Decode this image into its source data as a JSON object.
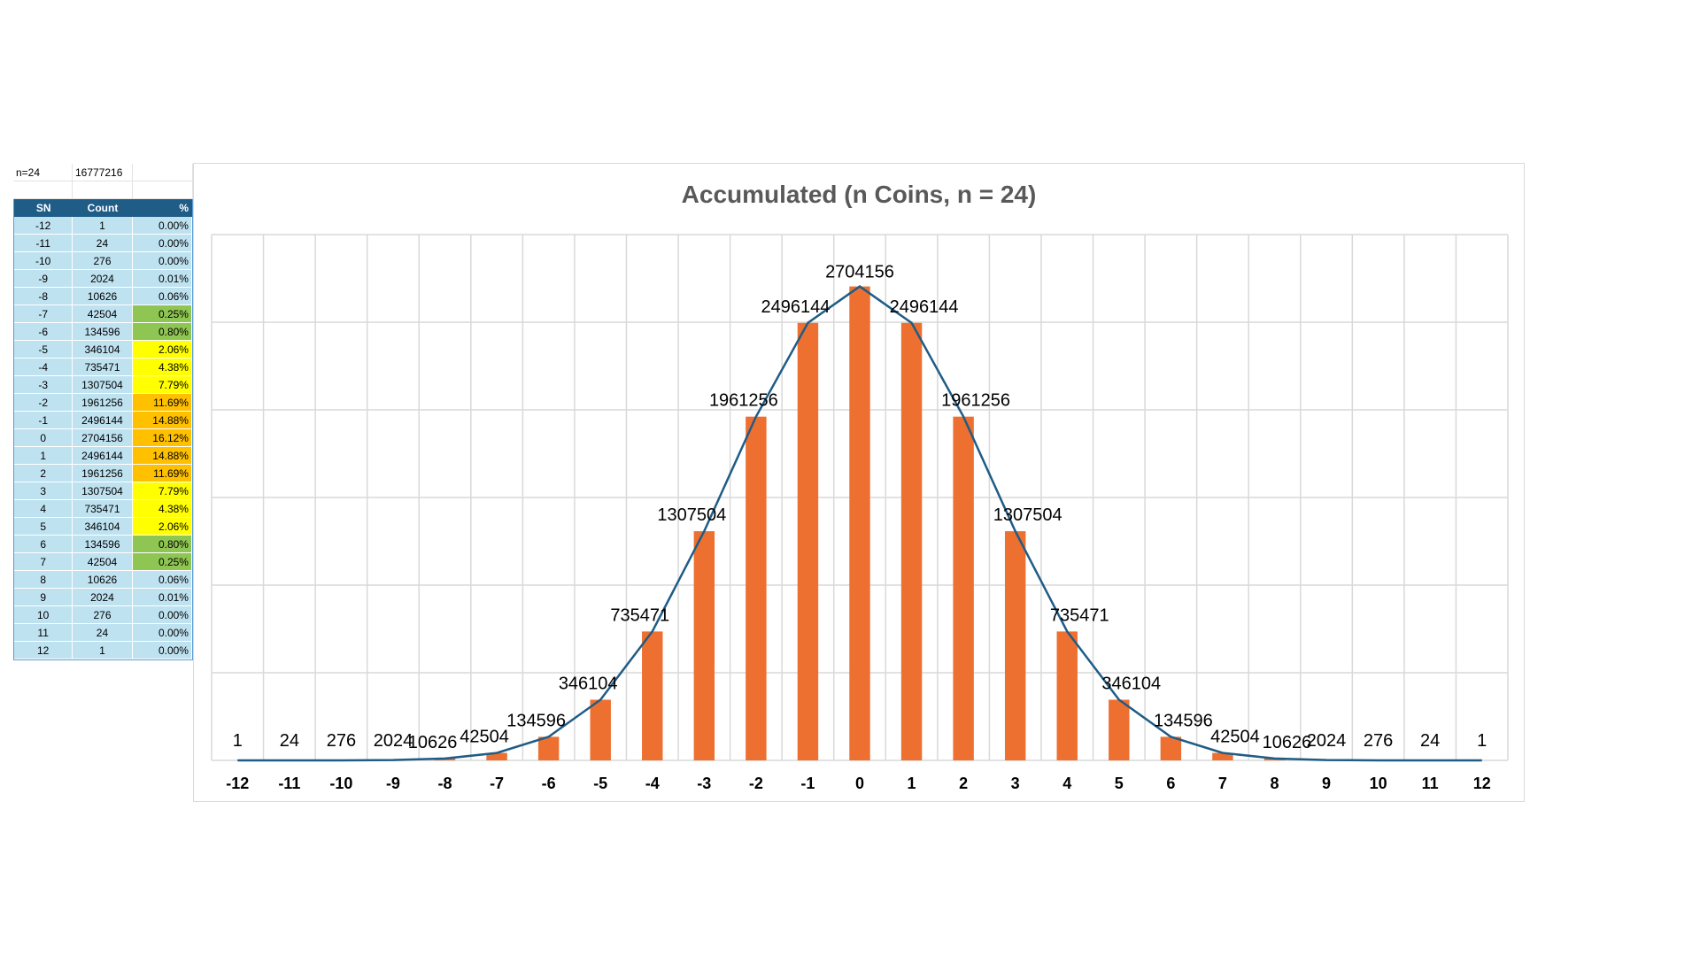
{
  "sheet": {
    "n_label": "n=24",
    "total": "16777216",
    "headers": {
      "sn": "SN",
      "count": "Count",
      "pct": "%"
    },
    "rows": [
      {
        "sn": "-12",
        "count": "1",
        "pct": "0.00%",
        "band": "none"
      },
      {
        "sn": "-11",
        "count": "24",
        "pct": "0.00%",
        "band": "none"
      },
      {
        "sn": "-10",
        "count": "276",
        "pct": "0.00%",
        "band": "none"
      },
      {
        "sn": "-9",
        "count": "2024",
        "pct": "0.01%",
        "band": "none"
      },
      {
        "sn": "-8",
        "count": "10626",
        "pct": "0.06%",
        "band": "none"
      },
      {
        "sn": "-7",
        "count": "42504",
        "pct": "0.25%",
        "band": "green"
      },
      {
        "sn": "-6",
        "count": "134596",
        "pct": "0.80%",
        "band": "green"
      },
      {
        "sn": "-5",
        "count": "346104",
        "pct": "2.06%",
        "band": "yellow"
      },
      {
        "sn": "-4",
        "count": "735471",
        "pct": "4.38%",
        "band": "yellow"
      },
      {
        "sn": "-3",
        "count": "1307504",
        "pct": "7.79%",
        "band": "yellow"
      },
      {
        "sn": "-2",
        "count": "1961256",
        "pct": "11.69%",
        "band": "orange"
      },
      {
        "sn": "-1",
        "count": "2496144",
        "pct": "14.88%",
        "band": "orange"
      },
      {
        "sn": "0",
        "count": "2704156",
        "pct": "16.12%",
        "band": "orange"
      },
      {
        "sn": "1",
        "count": "2496144",
        "pct": "14.88%",
        "band": "orange"
      },
      {
        "sn": "2",
        "count": "1961256",
        "pct": "11.69%",
        "band": "orange"
      },
      {
        "sn": "3",
        "count": "1307504",
        "pct": "7.79%",
        "band": "yellow"
      },
      {
        "sn": "4",
        "count": "735471",
        "pct": "4.38%",
        "band": "yellow"
      },
      {
        "sn": "5",
        "count": "346104",
        "pct": "2.06%",
        "band": "yellow"
      },
      {
        "sn": "6",
        "count": "134596",
        "pct": "0.80%",
        "band": "green"
      },
      {
        "sn": "7",
        "count": "42504",
        "pct": "0.25%",
        "band": "green"
      },
      {
        "sn": "8",
        "count": "10626",
        "pct": "0.06%",
        "band": "none"
      },
      {
        "sn": "9",
        "count": "2024",
        "pct": "0.01%",
        "band": "none"
      },
      {
        "sn": "10",
        "count": "276",
        "pct": "0.00%",
        "band": "none"
      },
      {
        "sn": "11",
        "count": "24",
        "pct": "0.00%",
        "band": "none"
      },
      {
        "sn": "12",
        "count": "1",
        "pct": "0.00%",
        "band": "none"
      }
    ]
  },
  "colors": {
    "bar": "#ed7031",
    "line": "#1f5c86",
    "grid": "#d9d9d9",
    "header_bg": "#1f5c86",
    "row_bg": "#bfe2f1",
    "band_green": "#8fc552",
    "band_yellow": "#ffff00",
    "band_orange": "#ffc000"
  },
  "chart_data": {
    "type": "bar",
    "title": "Accumulated (n Coins, n = 24)",
    "categories": [
      "-12",
      "-11",
      "-10",
      "-9",
      "-8",
      "-7",
      "-6",
      "-5",
      "-4",
      "-3",
      "-2",
      "-1",
      "0",
      "1",
      "2",
      "3",
      "4",
      "5",
      "6",
      "7",
      "8",
      "9",
      "10",
      "11",
      "12"
    ],
    "series": [
      {
        "kind": "bar",
        "values": [
          1,
          24,
          276,
          2024,
          10626,
          42504,
          134596,
          346104,
          735471,
          1307504,
          1961256,
          2496144,
          2704156,
          2496144,
          1961256,
          1307504,
          735471,
          346104,
          134596,
          42504,
          10626,
          2024,
          276,
          24,
          1
        ]
      },
      {
        "kind": "line",
        "values": [
          1,
          24,
          276,
          2024,
          10626,
          42504,
          134596,
          346104,
          735471,
          1307504,
          1961256,
          2496144,
          2704156,
          2496144,
          1961256,
          1307504,
          735471,
          346104,
          134596,
          42504,
          10626,
          2024,
          276,
          24,
          1
        ]
      }
    ],
    "data_labels": [
      "1",
      "24",
      "276",
      "2024",
      "10626",
      "42504",
      "134596",
      "346104",
      "735471",
      "1307504",
      "1961256",
      "2496144",
      "2704156",
      "2496144",
      "1961256",
      "1307504",
      "735471",
      "346104",
      "134596",
      "42504",
      "10626",
      "2024",
      "276",
      "24",
      "1"
    ],
    "ylim": [
      0,
      3000000
    ],
    "xlabel": "",
    "ylabel": "",
    "grid": true,
    "legend": "none"
  }
}
